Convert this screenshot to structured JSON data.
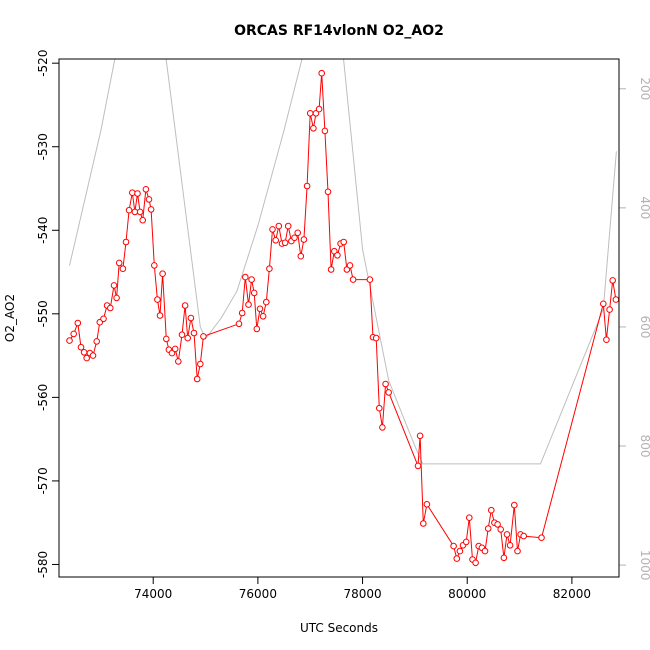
{
  "chart_data": {
    "type": "line",
    "title": "ORCAS RF14vlonN O2_AO2",
    "xlabel": "UTC Seconds",
    "ylabel": "O2_AO2",
    "xlim": [
      72200,
      82900
    ],
    "ylim": [
      -581.5,
      -519.5
    ],
    "y2lim": [
      1020,
      150
    ],
    "x_ticks": [
      74000,
      76000,
      78000,
      80000,
      82000
    ],
    "x_tick_labels": [
      "74000",
      "76000",
      "78000",
      "80000",
      "82000"
    ],
    "y_ticks": [
      -580,
      -570,
      -560,
      -550,
      -540,
      -530,
      -520
    ],
    "y_tick_labels": [
      "-580",
      "-570",
      "-560",
      "-550",
      "-540",
      "-530",
      "-520"
    ],
    "y2_ticks": [
      200,
      400,
      600,
      800,
      1000
    ],
    "y2_tick_labels": [
      "200",
      "400",
      "600",
      "800",
      "1000"
    ],
    "grid": false,
    "colors": {
      "series": "#ff0000",
      "secondary": "#bebebe"
    },
    "series": [
      {
        "axis": "left",
        "marker": "open-circle",
        "x": [
          72400,
          72480,
          72560,
          72620,
          72680,
          72730,
          72790,
          72850,
          72920,
          72980,
          73050,
          73120,
          73180,
          73250,
          73300,
          73350,
          73420,
          73480,
          73540,
          73600,
          73650,
          73700,
          73750,
          73800,
          73860,
          73920,
          73960,
          74020,
          74080,
          74130,
          74180,
          74250,
          74300,
          74360,
          74420,
          74480,
          74550,
          74610,
          74660,
          74720,
          74780,
          74840,
          74900,
          74960,
          75640,
          75700,
          75760,
          75820,
          75880,
          75930,
          75980,
          76040,
          76100,
          76160,
          76220,
          76280,
          76340,
          76400,
          76460,
          76520,
          76580,
          76640,
          76700,
          76760,
          76820,
          76880,
          76940,
          77000,
          77060,
          77110,
          77170,
          77220,
          77280,
          77340,
          77400,
          77460,
          77520,
          77580,
          77640,
          77700,
          77760,
          77820,
          78140,
          78200,
          78260,
          78320,
          78380,
          78440,
          78500,
          79060,
          79100,
          79160,
          79230,
          79740,
          79800,
          79860,
          79920,
          79980,
          80040,
          80100,
          80160,
          80220,
          80280,
          80340,
          80400,
          80460,
          80520,
          80580,
          80640,
          80700,
          80760,
          80820,
          80900,
          80960,
          81020,
          81080,
          81420,
          82600,
          82660,
          82720,
          82780,
          82840
        ],
        "y": [
          -553.2,
          -552.4,
          -551.1,
          -554.0,
          -554.6,
          -555.3,
          -554.7,
          -555.0,
          -553.3,
          -551.0,
          -550.6,
          -549.0,
          -549.3,
          -546.6,
          -548.1,
          -543.9,
          -544.6,
          -541.4,
          -537.6,
          -535.5,
          -537.8,
          -535.6,
          -537.8,
          -538.8,
          -535.1,
          -536.3,
          -537.5,
          -544.2,
          -548.3,
          -550.2,
          -545.2,
          -553.0,
          -554.3,
          -554.7,
          -554.2,
          -555.7,
          -552.5,
          -549.0,
          -552.9,
          -550.5,
          -552.3,
          -557.8,
          -556.0,
          -552.7,
          -551.2,
          -549.9,
          -545.6,
          -548.9,
          -545.9,
          -547.5,
          -551.8,
          -549.4,
          -550.3,
          -548.6,
          -544.6,
          -539.9,
          -541.2,
          -539.5,
          -541.6,
          -541.5,
          -539.5,
          -541.3,
          -540.9,
          -540.3,
          -543.1,
          -541.1,
          -534.7,
          -526.0,
          -527.8,
          -526.0,
          -525.5,
          -521.2,
          -528.1,
          -535.4,
          -544.7,
          -542.5,
          -543.0,
          -541.6,
          -541.4,
          -544.7,
          -544.2,
          -545.9,
          -545.9,
          -552.8,
          -552.9,
          -561.3,
          -563.6,
          -558.4,
          -559.4,
          -568.2,
          -564.6,
          -575.1,
          -572.8,
          -577.8,
          -579.3,
          -578.4,
          -577.7,
          -577.3,
          -574.4,
          -579.4,
          -579.8,
          -577.8,
          -578.0,
          -578.4,
          -575.7,
          -573.5,
          -575.0,
          -575.2,
          -575.8,
          -579.2,
          -576.4,
          -577.7,
          -572.9,
          -578.4,
          -576.4,
          -576.6,
          -576.8,
          -548.8,
          -553.1,
          -549.5,
          -546.0,
          -548.3
        ]
      },
      {
        "axis": "right",
        "x": [
          72400,
          73000,
          73400,
          73500,
          74000,
          74900,
          75000,
          75300,
          75600,
          76000,
          76500,
          76900,
          77000,
          77500,
          78000,
          78500,
          79000,
          79150,
          80000,
          81000,
          81400,
          82600,
          82850
        ],
        "y": [
          497,
          270,
          90,
          40,
          -20,
          600,
          620,
          585,
          540,
          430,
          270,
          130,
          30,
          30,
          470,
          690,
          800,
          830,
          830,
          830,
          830,
          570,
          305
        ]
      }
    ]
  }
}
